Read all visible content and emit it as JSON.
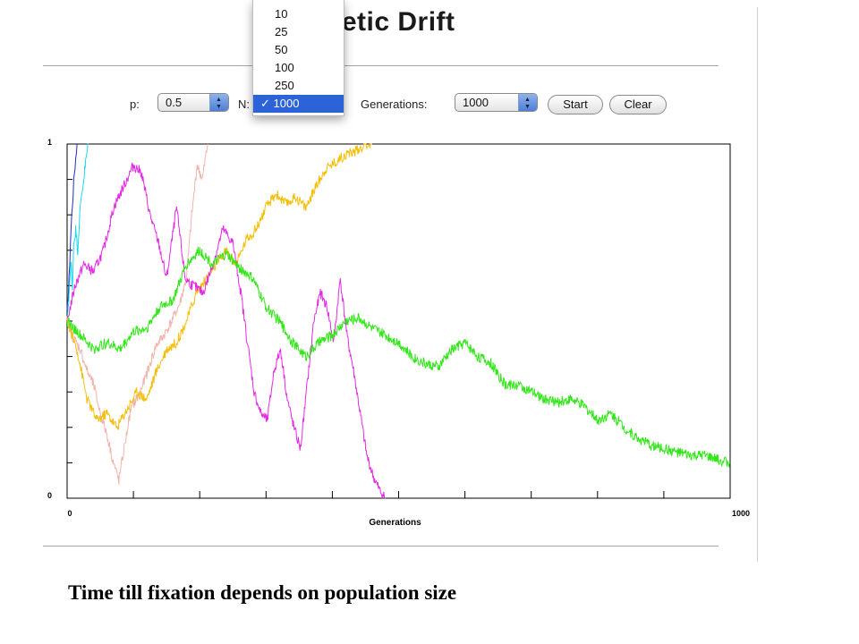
{
  "window": {
    "title": "Genetic Drift"
  },
  "controls": {
    "p_label": "p:",
    "p_value": "0.5",
    "n_label": "N:",
    "generations_label": "Generations:",
    "generations_value": "1000",
    "start_label": "Start",
    "clear_label": "Clear"
  },
  "n_menu": {
    "options": [
      "10",
      "25",
      "50",
      "100",
      "250",
      "1000"
    ],
    "selected": "1000",
    "checkmark": "✓"
  },
  "chart_data": {
    "type": "line",
    "title": "",
    "xlabel": "Generations",
    "ylabel": "",
    "xlim": [
      0,
      1000
    ],
    "ylim": [
      0,
      1
    ],
    "x_tick_labels": [
      "0",
      "1000"
    ],
    "y_tick_labels": [
      "0",
      "1"
    ],
    "grid": false,
    "legend": "none",
    "series": [
      {
        "color": "#1f2fb8",
        "points": [
          [
            0,
            0.52
          ],
          [
            3,
            0.62
          ],
          [
            5,
            0.72
          ],
          [
            7,
            0.8
          ],
          [
            9,
            0.86
          ],
          [
            11,
            0.92
          ],
          [
            13,
            0.96
          ],
          [
            15,
            1.0
          ]
        ]
      },
      {
        "color": "#19d9ee",
        "points": [
          [
            0,
            0.5
          ],
          [
            3,
            0.58
          ],
          [
            6,
            0.66
          ],
          [
            8,
            0.6
          ],
          [
            10,
            0.72
          ],
          [
            13,
            0.76
          ],
          [
            16,
            0.7
          ],
          [
            19,
            0.8
          ],
          [
            22,
            0.86
          ],
          [
            25,
            0.9
          ],
          [
            28,
            0.95
          ],
          [
            32,
            1.0
          ]
        ]
      },
      {
        "color": "#f2b3ad",
        "points": [
          [
            0,
            0.5
          ],
          [
            10,
            0.45
          ],
          [
            20,
            0.42
          ],
          [
            30,
            0.36
          ],
          [
            40,
            0.32
          ],
          [
            50,
            0.24
          ],
          [
            60,
            0.18
          ],
          [
            70,
            0.1
          ],
          [
            78,
            0.05
          ],
          [
            86,
            0.14
          ],
          [
            96,
            0.25
          ],
          [
            110,
            0.3
          ],
          [
            122,
            0.36
          ],
          [
            134,
            0.43
          ],
          [
            146,
            0.46
          ],
          [
            158,
            0.5
          ],
          [
            170,
            0.55
          ],
          [
            180,
            0.62
          ],
          [
            188,
            0.8
          ],
          [
            196,
            0.94
          ],
          [
            204,
            0.9
          ],
          [
            212,
            1.0
          ]
        ]
      },
      {
        "color": "#f5be0b",
        "points": [
          [
            0,
            0.5
          ],
          [
            15,
            0.42
          ],
          [
            30,
            0.28
          ],
          [
            45,
            0.22
          ],
          [
            60,
            0.24
          ],
          [
            75,
            0.2
          ],
          [
            90,
            0.25
          ],
          [
            105,
            0.3
          ],
          [
            120,
            0.28
          ],
          [
            135,
            0.36
          ],
          [
            150,
            0.42
          ],
          [
            165,
            0.44
          ],
          [
            180,
            0.5
          ],
          [
            195,
            0.58
          ],
          [
            210,
            0.62
          ],
          [
            225,
            0.66
          ],
          [
            240,
            0.7
          ],
          [
            255,
            0.66
          ],
          [
            270,
            0.73
          ],
          [
            285,
            0.76
          ],
          [
            300,
            0.82
          ],
          [
            315,
            0.86
          ],
          [
            330,
            0.83
          ],
          [
            345,
            0.85
          ],
          [
            360,
            0.82
          ],
          [
            375,
            0.88
          ],
          [
            390,
            0.93
          ],
          [
            405,
            0.95
          ],
          [
            420,
            0.97
          ],
          [
            435,
            0.98
          ],
          [
            450,
            1.0
          ],
          [
            460,
            1.0
          ]
        ]
      },
      {
        "color": "#e22be2",
        "points": [
          [
            0,
            0.5
          ],
          [
            12,
            0.6
          ],
          [
            25,
            0.66
          ],
          [
            40,
            0.64
          ],
          [
            55,
            0.7
          ],
          [
            70,
            0.82
          ],
          [
            85,
            0.88
          ],
          [
            100,
            0.94
          ],
          [
            112,
            0.92
          ],
          [
            125,
            0.8
          ],
          [
            138,
            0.72
          ],
          [
            150,
            0.62
          ],
          [
            165,
            0.82
          ],
          [
            178,
            0.62
          ],
          [
            190,
            0.6
          ],
          [
            205,
            0.58
          ],
          [
            220,
            0.66
          ],
          [
            235,
            0.76
          ],
          [
            250,
            0.72
          ],
          [
            262,
            0.58
          ],
          [
            272,
            0.44
          ],
          [
            282,
            0.3
          ],
          [
            292,
            0.24
          ],
          [
            302,
            0.22
          ],
          [
            312,
            0.36
          ],
          [
            322,
            0.42
          ],
          [
            332,
            0.28
          ],
          [
            342,
            0.2
          ],
          [
            352,
            0.14
          ],
          [
            362,
            0.32
          ],
          [
            372,
            0.5
          ],
          [
            382,
            0.58
          ],
          [
            392,
            0.54
          ],
          [
            402,
            0.44
          ],
          [
            412,
            0.62
          ],
          [
            422,
            0.46
          ],
          [
            432,
            0.36
          ],
          [
            442,
            0.24
          ],
          [
            452,
            0.12
          ],
          [
            462,
            0.06
          ],
          [
            472,
            0.02
          ],
          [
            480,
            0.0
          ]
        ]
      },
      {
        "color": "#33e61a",
        "points": [
          [
            0,
            0.5
          ],
          [
            20,
            0.46
          ],
          [
            40,
            0.42
          ],
          [
            60,
            0.44
          ],
          [
            80,
            0.42
          ],
          [
            100,
            0.47
          ],
          [
            120,
            0.48
          ],
          [
            140,
            0.54
          ],
          [
            160,
            0.56
          ],
          [
            180,
            0.66
          ],
          [
            200,
            0.7
          ],
          [
            220,
            0.66
          ],
          [
            240,
            0.69
          ],
          [
            260,
            0.65
          ],
          [
            280,
            0.62
          ],
          [
            300,
            0.54
          ],
          [
            320,
            0.5
          ],
          [
            340,
            0.44
          ],
          [
            360,
            0.4
          ],
          [
            380,
            0.44
          ],
          [
            400,
            0.46
          ],
          [
            420,
            0.5
          ],
          [
            440,
            0.51
          ],
          [
            460,
            0.48
          ],
          [
            480,
            0.46
          ],
          [
            500,
            0.44
          ],
          [
            520,
            0.4
          ],
          [
            540,
            0.38
          ],
          [
            560,
            0.37
          ],
          [
            580,
            0.42
          ],
          [
            600,
            0.44
          ],
          [
            620,
            0.4
          ],
          [
            640,
            0.38
          ],
          [
            660,
            0.32
          ],
          [
            680,
            0.32
          ],
          [
            700,
            0.3
          ],
          [
            720,
            0.28
          ],
          [
            740,
            0.27
          ],
          [
            760,
            0.28
          ],
          [
            780,
            0.26
          ],
          [
            800,
            0.22
          ],
          [
            820,
            0.24
          ],
          [
            840,
            0.2
          ],
          [
            860,
            0.17
          ],
          [
            880,
            0.15
          ],
          [
            900,
            0.14
          ],
          [
            920,
            0.13
          ],
          [
            940,
            0.12
          ],
          [
            960,
            0.12
          ],
          [
            980,
            0.11
          ],
          [
            1000,
            0.1
          ]
        ]
      }
    ]
  },
  "caption": "Time till fixation depends on population size"
}
